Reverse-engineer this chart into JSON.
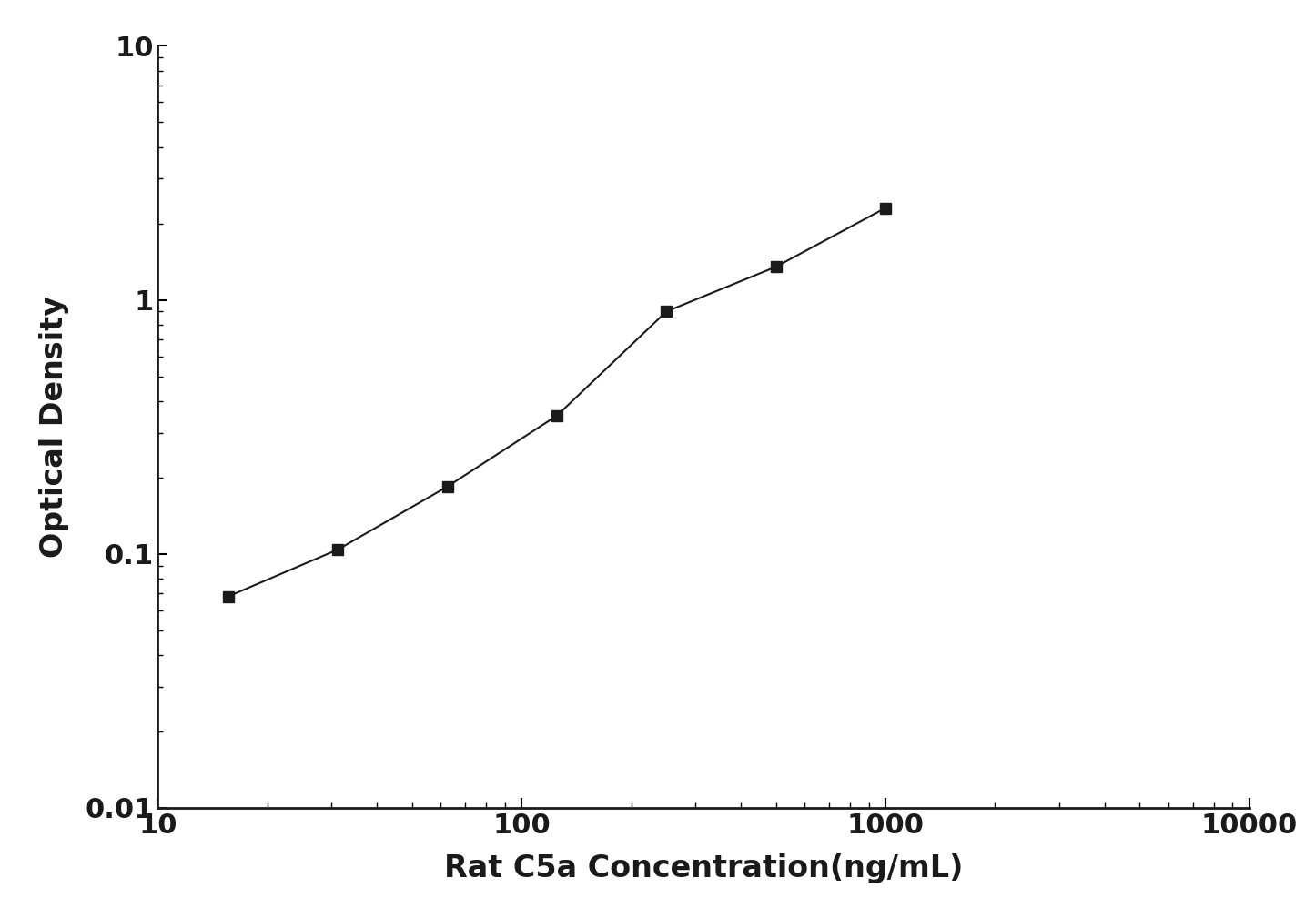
{
  "x_values": [
    15.625,
    31.25,
    62.5,
    125,
    250,
    500,
    1000
  ],
  "y_values": [
    0.068,
    0.104,
    0.184,
    0.35,
    0.9,
    1.35,
    2.3
  ],
  "xlabel": "Rat C5a Concentration(ng/mL)",
  "ylabel": "Optical Density",
  "xlim": [
    10,
    10000
  ],
  "ylim": [
    0.01,
    10
  ],
  "line_color": "#1a1a1a",
  "marker": "s",
  "marker_size": 9,
  "linewidth": 1.5,
  "xlabel_fontsize": 24,
  "ylabel_fontsize": 24,
  "tick_fontsize": 22,
  "background_color": "#ffffff",
  "x_ticks": [
    10,
    100,
    1000,
    10000
  ],
  "y_ticks": [
    0.01,
    0.1,
    1,
    10
  ]
}
